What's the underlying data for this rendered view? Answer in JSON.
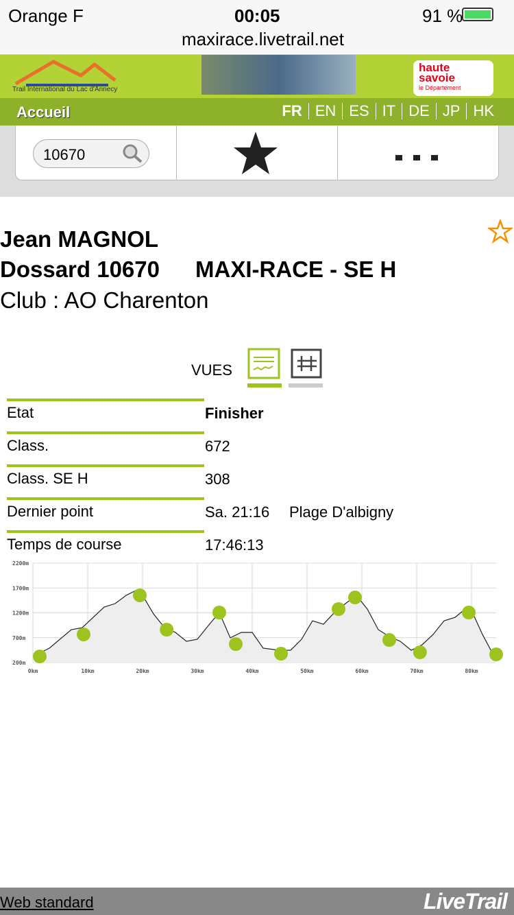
{
  "status_bar": {
    "carrier": "Orange F",
    "time": "00:05",
    "battery": "91 %",
    "url": "maxirace.livetrail.net"
  },
  "header": {
    "logo_caption": "Trail International du Lac d'Annecy",
    "sponsor_line1": "haute",
    "sponsor_line2": "savoie",
    "sponsor_line3": "le Département"
  },
  "nav": {
    "home": "Accueil",
    "languages": [
      "FR",
      "EN",
      "ES",
      "IT",
      "DE",
      "JP",
      "HK"
    ]
  },
  "search": {
    "value": "10670"
  },
  "runner": {
    "name": "Jean MAGNOL",
    "bib": "Dossard 10670",
    "race": "MAXI-RACE - SE H",
    "club": "Club : AO Charenton"
  },
  "views": {
    "label": "VUES"
  },
  "table": {
    "rows": [
      [
        "Etat",
        "Finisher"
      ],
      [
        "Class.",
        "672"
      ],
      [
        "Class. SE H",
        "308"
      ],
      [
        "Dernier point",
        "Sa. 21:16",
        "Plage D'albigny"
      ],
      [
        "Temps de course",
        "17:46:13"
      ]
    ]
  },
  "chart_data": {
    "type": "area",
    "profile": {
      "x": [
        0,
        3,
        7,
        9,
        11,
        13,
        15,
        17,
        19,
        20,
        22,
        24,
        26,
        28,
        30,
        32,
        34,
        36,
        38,
        40,
        42,
        45,
        47,
        49,
        51,
        53,
        55,
        57,
        59,
        61,
        63,
        65,
        67,
        69,
        71,
        73,
        75,
        77,
        79,
        80,
        82,
        84,
        84.5
      ],
      "values": [
        324,
        490,
        862,
        903,
        1110,
        1317,
        1386,
        1552,
        1662,
        1552,
        1179,
        903,
        807,
        628,
        669,
        945,
        1207,
        697,
        807,
        807,
        490,
        448,
        448,
        669,
        1041,
        972,
        1207,
        1386,
        1552,
        1276,
        862,
        724,
        628,
        448,
        559,
        766,
        1041,
        1110,
        1290,
        1248,
        766,
        352,
        338
      ]
    },
    "checkpoints": {
      "x": [
        1.25,
        9.25,
        19.5,
        24.4,
        34,
        37,
        45.25,
        55.75,
        58.75,
        65,
        70.6,
        79.5,
        84.5
      ],
      "values": [
        324,
        766,
        1552,
        862,
        1207,
        572,
        379,
        1276,
        1510,
        655,
        407,
        1207,
        365
      ]
    },
    "line_color": "#222222",
    "fill_color": "#eeeeee",
    "point_color": "#9dc31f",
    "grid": true,
    "xlim": [
      0,
      84.5
    ],
    "ylim": [
      200,
      2200
    ],
    "xticks": [
      {
        "value": 0,
        "label": "0km"
      },
      {
        "value": 10,
        "label": "10km"
      },
      {
        "value": 20,
        "label": "20km"
      },
      {
        "value": 30,
        "label": "30km"
      },
      {
        "value": 40,
        "label": "40km"
      },
      {
        "value": 50,
        "label": "50km"
      },
      {
        "value": 60,
        "label": "60km"
      },
      {
        "value": 70,
        "label": "70km"
      },
      {
        "value": 80,
        "label": "80km"
      }
    ],
    "yticks": [
      {
        "value": 200,
        "label": "200m"
      },
      {
        "value": 700,
        "label": "700m"
      },
      {
        "value": 1200,
        "label": "1200m"
      },
      {
        "value": 1700,
        "label": "1700m"
      },
      {
        "value": 2200,
        "label": "2200m"
      }
    ]
  },
  "footer": {
    "link": "Web standard",
    "brand": "LiveTrail"
  }
}
